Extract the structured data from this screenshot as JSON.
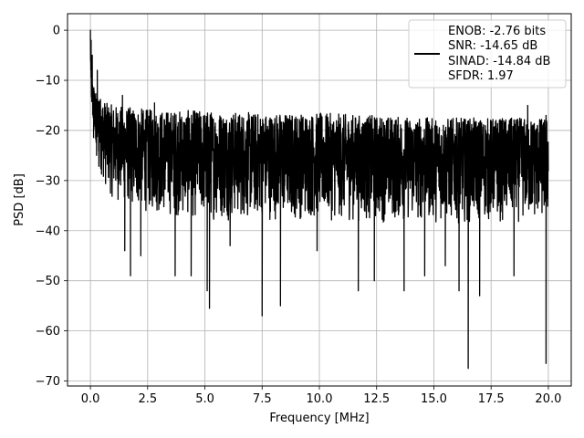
{
  "chart_data": {
    "type": "line",
    "title": "",
    "xlabel": "Frequency [MHz]",
    "ylabel": "PSD [dB]",
    "xlim": [
      -1.0,
      21.0
    ],
    "ylim": [
      -71.0,
      3.3
    ],
    "xticks": [
      0.0,
      2.5,
      5.0,
      7.5,
      10.0,
      12.5,
      15.0,
      17.5,
      20.0
    ],
    "xtick_labels": [
      "0.0",
      "2.5",
      "5.0",
      "7.5",
      "10.0",
      "12.5",
      "15.0",
      "17.5",
      "20.0"
    ],
    "yticks": [
      0,
      -10,
      -20,
      -30,
      -40,
      -50,
      -60,
      -70
    ],
    "ytick_labels": [
      "0",
      "−10",
      "−20",
      "−30",
      "−40",
      "−50",
      "−60",
      "−70"
    ],
    "grid": true,
    "legend_position": "top-right",
    "line_color": "#000000",
    "series": [
      {
        "name": "ENOB: -2.76 bits\nSNR: -14.65 dB\nSINAD: -14.84 dB\nSFDR: 1.97",
        "legend_lines": [
          "ENOB: -2.76 bits",
          "SNR: -14.65 dB",
          "SINAD: -14.84 dB",
          "SFDR: 1.97"
        ],
        "envelope": {
          "x": [
            0.0,
            0.02,
            0.05,
            0.1,
            0.2,
            0.4,
            0.7,
            1.0,
            2.0,
            3.0,
            4.0,
            5.0,
            7.5,
            10.0,
            12.5,
            15.0,
            17.5,
            20.0
          ],
          "upper": [
            0.0,
            -4.0,
            -7.0,
            -10.0,
            -12.0,
            -13.0,
            -14.5,
            -15.0,
            -15.5,
            -16.0,
            -16.0,
            -16.0,
            -16.5,
            -16.5,
            -17.0,
            -17.5,
            -17.5,
            -17.5
          ],
          "lower": [
            -7.0,
            -12.0,
            -16.0,
            -20.0,
            -24.0,
            -28.0,
            -32.0,
            -34.0,
            -36.0,
            -37.0,
            -37.5,
            -38.0,
            -38.0,
            -38.0,
            -38.5,
            -38.5,
            -38.5,
            -38.5
          ]
        },
        "dips": [
          {
            "x": 1.75,
            "y": -49.0
          },
          {
            "x": 1.5,
            "y": -44.0
          },
          {
            "x": 2.2,
            "y": -45.0
          },
          {
            "x": 3.7,
            "y": -49.0
          },
          {
            "x": 4.4,
            "y": -49.0
          },
          {
            "x": 5.1,
            "y": -52.0
          },
          {
            "x": 5.2,
            "y": -55.5
          },
          {
            "x": 7.5,
            "y": -57.0
          },
          {
            "x": 8.3,
            "y": -55.0
          },
          {
            "x": 9.9,
            "y": -44.0
          },
          {
            "x": 11.7,
            "y": -52.0
          },
          {
            "x": 12.4,
            "y": -50.0
          },
          {
            "x": 13.7,
            "y": -52.0
          },
          {
            "x": 14.6,
            "y": -49.0
          },
          {
            "x": 16.1,
            "y": -52.0
          },
          {
            "x": 16.5,
            "y": -67.5
          },
          {
            "x": 17.0,
            "y": -53.0
          },
          {
            "x": 18.5,
            "y": -49.0
          },
          {
            "x": 19.9,
            "y": -66.5
          },
          {
            "x": 6.1,
            "y": -43.0
          },
          {
            "x": 15.5,
            "y": -47.0
          }
        ],
        "peaks": [
          {
            "x": 0.0,
            "y": 0.0
          },
          {
            "x": 0.03,
            "y": -2.0
          },
          {
            "x": 0.08,
            "y": -5.0
          },
          {
            "x": 0.3,
            "y": -8.0
          },
          {
            "x": 1.4,
            "y": -13.0
          },
          {
            "x": 19.1,
            "y": -15.0
          },
          {
            "x": 19.9,
            "y": -17.0
          },
          {
            "x": 2.8,
            "y": -14.5
          }
        ]
      }
    ]
  }
}
